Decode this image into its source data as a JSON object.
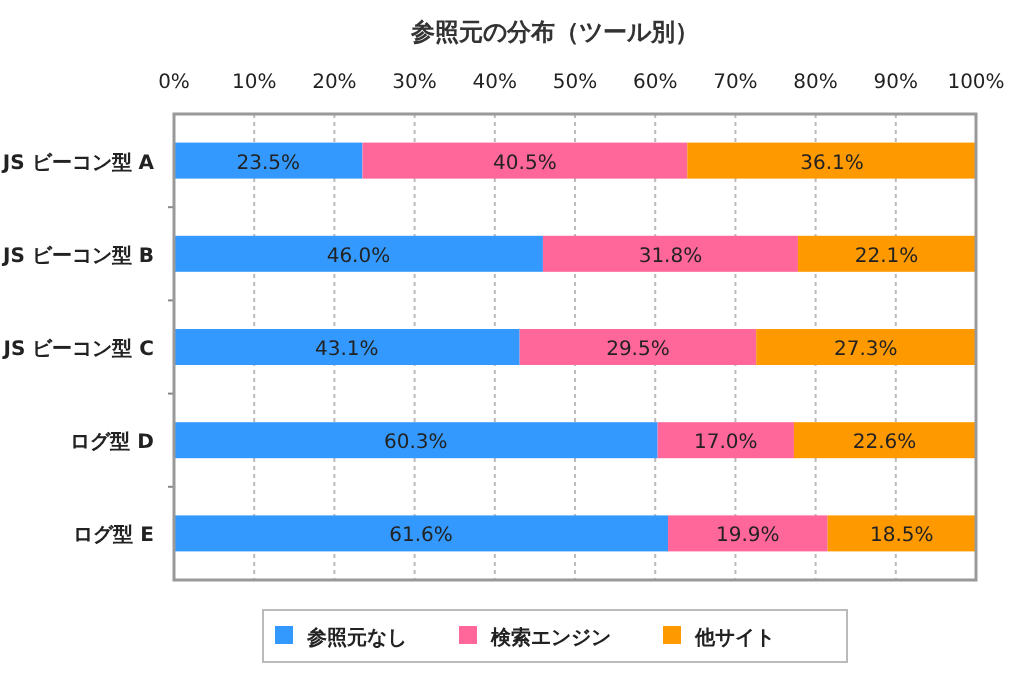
{
  "chart_data": {
    "type": "bar",
    "orientation": "horizontal",
    "stacked": true,
    "title": "参照元の分布（ツール別）",
    "categories": [
      "JS ビーコン型 A",
      "JS ビーコン型 B",
      "JS ビーコン型 C",
      "ログ型 D",
      "ログ型 E"
    ],
    "series": [
      {
        "name": "参照元なし",
        "color": "#3399ff",
        "values": [
          23.5,
          46.0,
          43.1,
          60.3,
          61.6
        ],
        "value_labels": [
          "23.5%",
          "46.0%",
          "43.1%",
          "60.3%",
          "61.6%"
        ]
      },
      {
        "name": "検索エンジン",
        "color": "#ff6699",
        "values": [
          40.5,
          31.8,
          29.5,
          17.0,
          19.9
        ],
        "value_labels": [
          "40.5%",
          "31.8%",
          "29.5%",
          "17.0%",
          "19.9%"
        ]
      },
      {
        "name": "他サイト",
        "color": "#ff9900",
        "values": [
          36.1,
          22.1,
          27.3,
          22.6,
          18.5
        ],
        "value_labels": [
          "36.1%",
          "22.1%",
          "27.3%",
          "22.6%",
          "18.5%"
        ]
      }
    ],
    "xlim": [
      0,
      100
    ],
    "xticks": [
      {
        "value": 0,
        "label": "0%"
      },
      {
        "value": 10,
        "label": "10%"
      },
      {
        "value": 20,
        "label": "20%"
      },
      {
        "value": 30,
        "label": "30%"
      },
      {
        "value": 40,
        "label": "40%"
      },
      {
        "value": 50,
        "label": "50%"
      },
      {
        "value": 60,
        "label": "60%"
      },
      {
        "value": 70,
        "label": "70%"
      },
      {
        "value": 80,
        "label": "80%"
      },
      {
        "value": 90,
        "label": "90%"
      },
      {
        "value": 100,
        "label": "100%"
      }
    ],
    "grid": "x",
    "legend": "bottom"
  }
}
